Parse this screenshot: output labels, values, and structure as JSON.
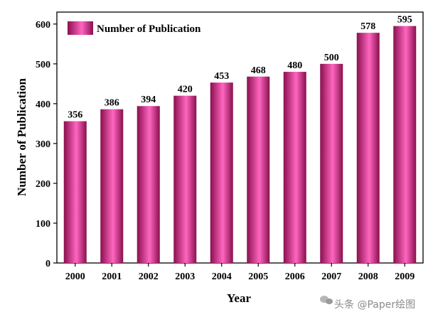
{
  "chart_data": {
    "type": "bar",
    "categories": [
      "2000",
      "2001",
      "2002",
      "2003",
      "2004",
      "2005",
      "2006",
      "2007",
      "2008",
      "2009"
    ],
    "series": [
      {
        "name": "Number of Publication",
        "values": [
          356,
          386,
          394,
          420,
          453,
          468,
          480,
          500,
          578,
          595
        ]
      }
    ],
    "title": "",
    "xlabel": "Year",
    "ylabel": "Number of Publication",
    "ylim": [
      0,
      630
    ],
    "yticks": [
      0,
      100,
      200,
      300,
      400,
      500,
      600
    ],
    "grid": false,
    "legend_position": "top-left",
    "bar_color": "#e8318e",
    "bar_shade": "#8a0f4e",
    "bar_highlight": "#ff66c0",
    "data_labels": true
  },
  "watermark": {
    "text": "头条 @Paper绘图",
    "icon": "wechat-icon"
  }
}
